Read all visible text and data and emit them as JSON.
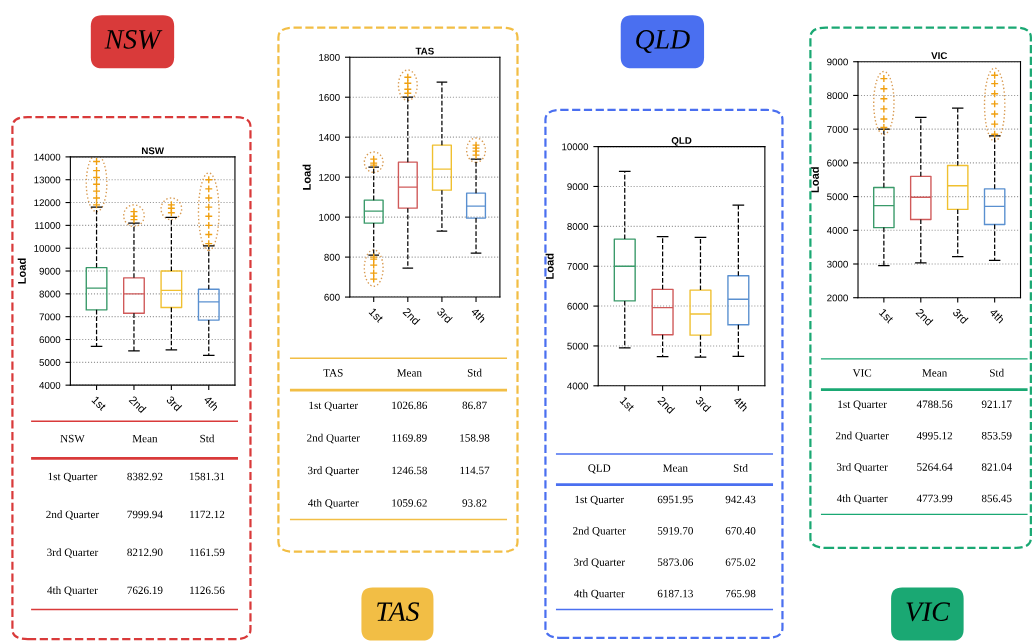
{
  "chart_data": [
    {
      "type": "box",
      "title": "NSW",
      "ylabel": "Load",
      "annotations": [
        "NSW"
      ],
      "color": "#d93a3a",
      "categories": [
        "1st",
        "2nd",
        "3rd",
        "4th"
      ],
      "colors": [
        "#3a9a6a",
        "#d05a5a",
        "#f0c030",
        "#5a90d0"
      ],
      "ylim": [
        4000,
        14000
      ],
      "yticks": [
        4000,
        5000,
        6000,
        7000,
        8000,
        9000,
        10000,
        11000,
        12000,
        13000,
        14000
      ],
      "grid": "y",
      "marker": "cross",
      "boxes": [
        {
          "low": 5700,
          "q1": 7300,
          "median": 8250,
          "q3": 9150,
          "high": 11800,
          "outliers": [
            11900,
            12200,
            12500,
            12800,
            13100,
            13400,
            13800
          ]
        },
        {
          "low": 5500,
          "q1": 7150,
          "median": 8000,
          "q3": 8700,
          "high": 11100,
          "outliers": [
            11250,
            11400,
            11600
          ]
        },
        {
          "low": 5550,
          "q1": 7400,
          "median": 8150,
          "q3": 9000,
          "high": 11350,
          "outliers": [
            11550,
            11750,
            11900
          ]
        },
        {
          "low": 5300,
          "q1": 6850,
          "median": 7650,
          "q3": 8200,
          "high": 10100,
          "outliers": [
            10200,
            10600,
            11000,
            11400,
            11800,
            12200,
            12600,
            13000
          ]
        }
      ]
    },
    {
      "type": "other",
      "title": "NSW",
      "data_labels": true,
      "categories": [
        "1st Quarter",
        "2nd Quarter",
        "3rd Quarter",
        "4th Quarter"
      ],
      "series": [
        {
          "name": "Mean",
          "values": [
            8382.92,
            7999.94,
            8212.9,
            7626.19
          ],
          "value_labels": [
            "8382.92",
            "7999.94",
            "8212.90",
            "7626.19"
          ]
        },
        {
          "name": "Std",
          "values": [
            1581.31,
            1172.12,
            1161.59,
            1126.56
          ]
        }
      ]
    },
    {
      "type": "box",
      "title": "TAS",
      "ylabel": "Load",
      "annotations": [
        "TAS"
      ],
      "color": "#f2be45",
      "categories": [
        "1st",
        "2nd",
        "3rd",
        "4th"
      ],
      "colors": [
        "#3a9a6a",
        "#d05a5a",
        "#f0c030",
        "#5a90d0"
      ],
      "ylim": [
        600,
        1800
      ],
      "yticks": [
        600,
        800,
        1000,
        1200,
        1400,
        1600,
        1800
      ],
      "grid": "y",
      "marker": "cross",
      "boxes": [
        {
          "low": 810,
          "q1": 970,
          "median": 1030,
          "q3": 1085,
          "high": 1250,
          "outliers": [
            690,
            720,
            760,
            790,
            800,
            1260,
            1270,
            1290
          ]
        },
        {
          "low": 745,
          "q1": 1045,
          "median": 1150,
          "q3": 1275,
          "high": 1600,
          "outliers": [
            1620,
            1640,
            1670,
            1700
          ]
        },
        {
          "low": 930,
          "q1": 1135,
          "median": 1240,
          "q3": 1360,
          "high": 1675
        },
        {
          "low": 820,
          "q1": 995,
          "median": 1055,
          "q3": 1120,
          "high": 1290,
          "outliers": [
            1310,
            1330,
            1345,
            1360
          ]
        }
      ]
    },
    {
      "type": "other",
      "title": "TAS",
      "data_labels": true,
      "categories": [
        "1st Quarter",
        "2nd Quarter",
        "3rd Quarter",
        "4th Quarter"
      ],
      "series": [
        {
          "name": "Mean",
          "values": [
            1026.86,
            1169.89,
            1246.58,
            1059.62
          ]
        },
        {
          "name": "Std",
          "values": [
            86.87,
            158.98,
            114.57,
            93.82
          ]
        }
      ]
    },
    {
      "type": "box",
      "title": "QLD",
      "ylabel": "Load",
      "annotations": [
        "QLD"
      ],
      "color": "#4a6ff0",
      "categories": [
        "1st",
        "2nd",
        "3rd",
        "4th"
      ],
      "colors": [
        "#3a9a6a",
        "#d05a5a",
        "#f0c030",
        "#5a90d0"
      ],
      "ylim": [
        4000,
        10000
      ],
      "yticks": [
        4000,
        5000,
        6000,
        7000,
        8000,
        9000,
        10000
      ],
      "grid": "y",
      "marker": "cross",
      "boxes": [
        {
          "low": 4950,
          "q1": 6130,
          "median": 7000,
          "q3": 7680,
          "high": 9380
        },
        {
          "low": 4730,
          "q1": 5280,
          "median": 5960,
          "q3": 6420,
          "high": 7740
        },
        {
          "low": 4720,
          "q1": 5270,
          "median": 5800,
          "q3": 6400,
          "high": 7720
        },
        {
          "low": 4740,
          "q1": 5530,
          "median": 6170,
          "q3": 6760,
          "high": 8530
        }
      ]
    },
    {
      "type": "other",
      "title": "QLD",
      "categories": [
        "1st Quarter",
        "2nd Quarter",
        "3rd Quarter",
        "4th Quarter"
      ],
      "series": [
        {
          "name": "Mean",
          "values": [
            6951.95,
            5919.7,
            5873.06,
            6187.13
          ],
          "value_labels": [
            "6951.95",
            "5919.70",
            "5873.06",
            "6187.13"
          ]
        },
        {
          "name": "Std",
          "values": [
            942.43,
            670.4,
            675.02,
            765.98
          ],
          "value_labels": [
            "942.43",
            "670.40",
            "675.02",
            "765.98"
          ]
        }
      ]
    },
    {
      "type": "box",
      "title": "VIC",
      "ylabel": "Load",
      "annotations": [
        "VIC"
      ],
      "color": "#1aa873",
      "categories": [
        "1st",
        "2nd",
        "3rd",
        "4th"
      ],
      "colors": [
        "#3a9a6a",
        "#d05a5a",
        "#f0c030",
        "#5a90d0"
      ],
      "ylim": [
        2000,
        9000
      ],
      "yticks": [
        2000,
        3000,
        4000,
        5000,
        6000,
        7000,
        8000,
        9000
      ],
      "grid": "y",
      "marker": "cross",
      "boxes": [
        {
          "low": 2950,
          "q1": 4080,
          "median": 4730,
          "q3": 5270,
          "high": 7000,
          "outliers": [
            7050,
            7300,
            7600,
            7900,
            8200,
            8500
          ]
        },
        {
          "low": 3030,
          "q1": 4320,
          "median": 4980,
          "q3": 5600,
          "high": 7350
        },
        {
          "low": 3220,
          "q1": 4620,
          "median": 5320,
          "q3": 5920,
          "high": 7620
        },
        {
          "low": 3110,
          "q1": 4170,
          "median": 4710,
          "q3": 5230,
          "high": 6800,
          "outliers": [
            6850,
            7150,
            7450,
            7750,
            8050,
            8350,
            8600
          ]
        }
      ]
    },
    {
      "type": "other",
      "title": "VIC",
      "data_labels": true,
      "categories": [
        "1st Quarter",
        "2nd Quarter",
        "3rd Quarter",
        "4th Quarter"
      ],
      "series": [
        {
          "name": "Mean",
          "values": [
            4788.56,
            4995.12,
            5264.64,
            4773.99
          ]
        },
        {
          "name": "Std",
          "values": [
            921.17,
            853.59,
            821.04,
            856.45
          ]
        }
      ]
    }
  ]
}
